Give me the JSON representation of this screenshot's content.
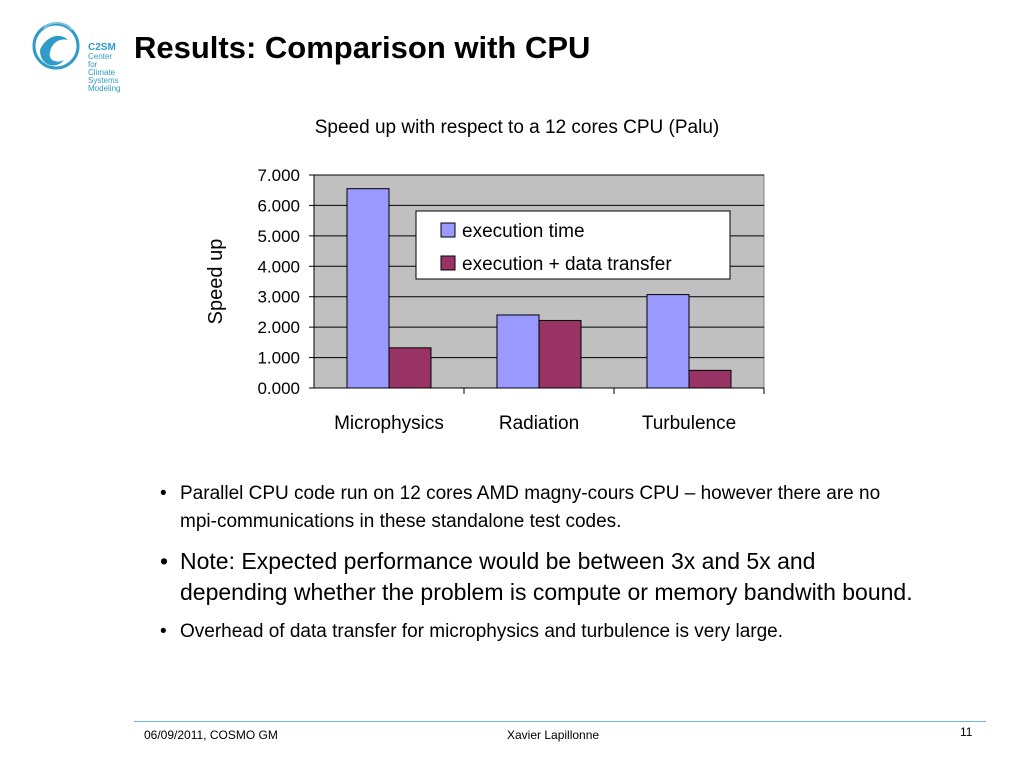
{
  "slide": {
    "title": "Results: Comparison with CPU",
    "logo": {
      "name": "C2SM",
      "line1": "Center for Climate",
      "line2": "Systems Modeling",
      "color": "#2e9bc8"
    }
  },
  "chart_data": {
    "type": "bar",
    "title": "Speed up with respect to a 12 cores CPU (Palu)",
    "xlabel": "",
    "ylabel": "Speed up",
    "categories": [
      "Microphysics",
      "Radiation",
      "Turbulence"
    ],
    "series": [
      {
        "name": "execution time",
        "values": [
          6.55,
          2.4,
          3.07
        ],
        "color": "#9999ff"
      },
      {
        "name": "execution + data transfer",
        "values": [
          1.32,
          2.22,
          0.58
        ],
        "color": "#993366"
      }
    ],
    "ylim": [
      0,
      7
    ],
    "yticks": [
      "0.000",
      "1.000",
      "2.000",
      "3.000",
      "4.000",
      "5.000",
      "6.000",
      "7.000"
    ],
    "grid": true,
    "plot_background": "#c0c0c0",
    "legend_position": "top-right"
  },
  "bullets": [
    "Parallel CPU code run on 12 cores AMD magny-cours CPU – however there are no mpi-communications in these standalone test codes.",
    "Note: Expected performance would be between 3x and 5x and depending whether the problem is compute or memory bandwith bound.",
    "Overhead of data transfer for microphysics and turbulence is very large."
  ],
  "bullet_marker": "•",
  "footer": {
    "left": "06/09/2011, COSMO GM",
    "center": "Xavier Lapillonne",
    "page": "11"
  }
}
